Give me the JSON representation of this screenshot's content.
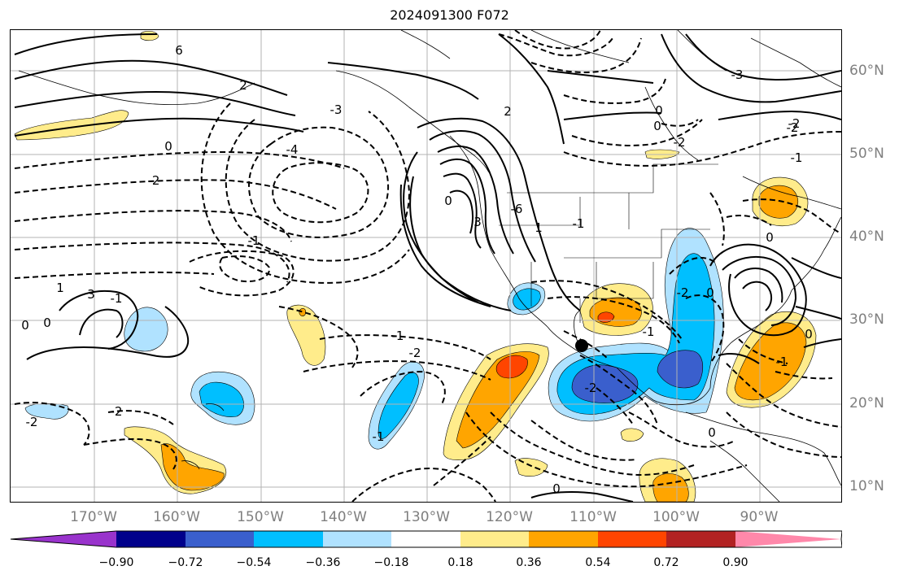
{
  "title": "2024091300 F072",
  "lon_labels": [
    "170°W",
    "160°W",
    "150°W",
    "140°W",
    "130°W",
    "120°W",
    "110°W",
    "100°W",
    "90°W"
  ],
  "lat_labels": [
    "60°N",
    "50°N",
    "40°N",
    "30°N",
    "20°N",
    "10°N"
  ],
  "colorbar": {
    "ticks": [
      "−0.90",
      "−0.72",
      "−0.54",
      "−0.36",
      "−0.18",
      "0.18",
      "0.36",
      "0.54",
      "0.72",
      "0.90"
    ],
    "colors": [
      "#9933cc",
      "#00008b",
      "#3a5fcd",
      "#00bfff",
      "#b0e2ff",
      "#ffffff",
      "#ffec8b",
      "#ffa500",
      "#ff4500",
      "#b22222",
      "#ff88aa"
    ]
  },
  "contour_labels": [
    "6",
    "2",
    "-3",
    "-4",
    "-2",
    "0",
    "-1",
    "1",
    "3",
    "-6",
    "0",
    "-1",
    "-2",
    "0",
    "-2",
    "3",
    "-2",
    "0",
    "-1",
    "-2",
    "2",
    "-1",
    "1",
    "-2",
    "0",
    "0",
    "0",
    "-1",
    "-2",
    "0",
    "-1",
    "-3",
    "-2",
    "0",
    "-1",
    "-2",
    "0",
    "-1",
    "0"
  ],
  "marker": "storm-center"
}
